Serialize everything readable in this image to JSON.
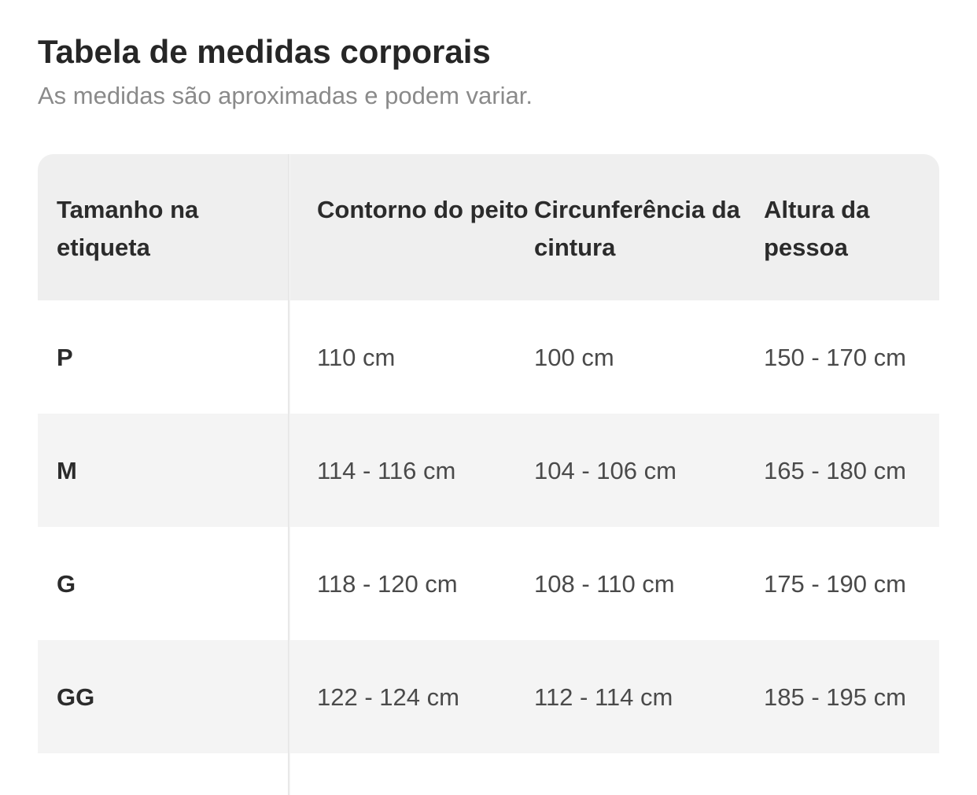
{
  "title": "Tabela de medidas corporais",
  "subtitle": "As medidas são aproximadas e podem variar.",
  "table": {
    "headers": [
      "Tamanho na etiqueta",
      "Contorno do peito",
      "Circunferência da cintura",
      "Altura da pessoa"
    ],
    "rows": [
      [
        "P",
        "110 cm",
        "100 cm",
        "150 - 170 cm"
      ],
      [
        "M",
        "114 - 116 cm",
        "104 - 106 cm",
        "165 - 180 cm"
      ],
      [
        "G",
        "118 - 120 cm",
        "108 - 110 cm",
        "175 - 190 cm"
      ],
      [
        "GG",
        "122 - 124 cm",
        "112 - 114 cm",
        "185 - 195 cm"
      ]
    ]
  },
  "colors": {
    "header_bg": "#efefef",
    "shaded_row_bg": "#f4f4f4",
    "title_text": "#262626",
    "subtitle_text": "#8a8a8a"
  }
}
